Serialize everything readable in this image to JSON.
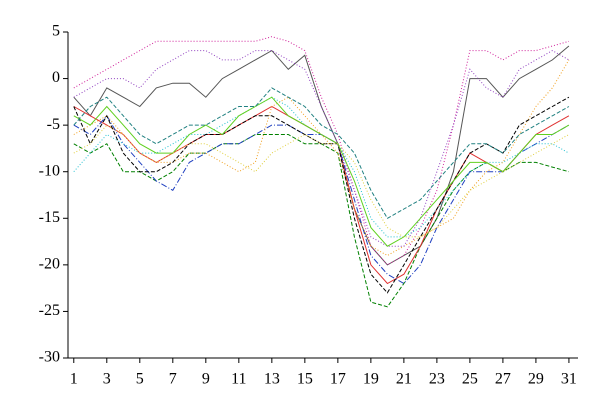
{
  "chart_data": {
    "type": "line",
    "x": [
      1,
      2,
      3,
      4,
      5,
      6,
      7,
      8,
      9,
      10,
      11,
      12,
      13,
      14,
      15,
      16,
      17,
      18,
      19,
      20,
      21,
      22,
      23,
      24,
      25,
      26,
      27,
      28,
      29,
      30,
      31
    ],
    "xlim": [
      0.65,
      31.55
    ],
    "xticks": [
      1,
      3,
      5,
      7,
      9,
      11,
      13,
      15,
      17,
      19,
      21,
      23,
      25,
      27,
      29,
      31
    ],
    "ylim": [
      -30,
      5
    ],
    "yticks": [
      -30,
      -25,
      -20,
      -15,
      -10,
      -5,
      0,
      5
    ],
    "series": [
      {
        "color": "#555555",
        "dash": "none",
        "values": [
          -2,
          -4,
          -1,
          -2,
          -3,
          -1,
          -0.5,
          -0.5,
          -2,
          0,
          1,
          2,
          3,
          1,
          2.5,
          -3,
          -7,
          -14,
          -18,
          -20,
          -19,
          -18,
          -15,
          -10,
          0,
          0,
          -2,
          0,
          1,
          2,
          3.5
        ]
      },
      {
        "color": "#008000",
        "dash": "4,2",
        "values": [
          -7,
          -8,
          -7,
          -10,
          -10,
          -11,
          -10,
          -8,
          -8,
          -7,
          -7,
          -6,
          -6,
          -6,
          -7,
          -7,
          -8,
          -17,
          -24,
          -24.5,
          -22,
          -18,
          -15,
          -12,
          -10,
          -9,
          -10,
          -9,
          -9,
          -9.5,
          -10
        ]
      },
      {
        "color": "#d0209a",
        "dash": "1,2",
        "values": [
          -1,
          0,
          1,
          2,
          3,
          4,
          4,
          4,
          4,
          4,
          4,
          4,
          4.5,
          4,
          3,
          -2,
          -6,
          -12,
          -18,
          -20,
          -19,
          -16,
          -12,
          -5,
          3,
          3,
          2,
          3,
          3,
          3.5,
          4
        ]
      },
      {
        "color": "#e03030",
        "dash": "none",
        "values": [
          -3,
          -4,
          -5,
          -6,
          -8,
          -9,
          -8,
          -7,
          -6,
          -6,
          -5,
          -4,
          -3,
          -4,
          -5,
          -6,
          -7,
          -14,
          -20,
          -22,
          -21,
          -18,
          -14,
          -11,
          -8,
          -9,
          -10,
          -8,
          -6,
          -5,
          -4
        ]
      },
      {
        "color": "#2040c0",
        "dash": "6,2,1,2",
        "values": [
          -5,
          -6,
          -4,
          -7,
          -9,
          -11,
          -12,
          -9,
          -8,
          -7,
          -7,
          -6,
          -5,
          -5,
          -6,
          -6,
          -7,
          -13,
          -19,
          -21,
          -22,
          -20,
          -16,
          -13,
          -10,
          -10,
          -10,
          -8,
          -7,
          -6,
          -5
        ]
      },
      {
        "color": "#20c0d0",
        "dash": "1,2",
        "values": [
          -10,
          -8,
          -6,
          -7,
          -8,
          -8,
          -7,
          -6,
          -6,
          -5,
          -4,
          -3,
          -2,
          -3,
          -5,
          -6,
          -7,
          -10,
          -15,
          -17,
          -17,
          -16,
          -14,
          -12,
          -10,
          -9,
          -9,
          -8,
          -7,
          -7,
          -8
        ]
      },
      {
        "color": "#f0a020",
        "dash": "1,2",
        "values": [
          -6,
          -5,
          -4,
          -6,
          -8,
          -9,
          -9,
          -8,
          -8,
          -9,
          -10,
          -9,
          -3,
          -2,
          -4,
          -6,
          -8,
          -14,
          -18,
          -19,
          -18,
          -17,
          -16,
          -15,
          -12,
          -10,
          -9,
          -6,
          -3,
          -1,
          2
        ]
      },
      {
        "color": "#000000",
        "dash": "4,2",
        "values": [
          -3,
          -7,
          -4,
          -8,
          -10,
          -10,
          -9,
          -7,
          -6,
          -6,
          -5,
          -4,
          -4,
          -5,
          -6,
          -7,
          -7,
          -15,
          -21,
          -23,
          -20,
          -17,
          -14,
          -11,
          -8,
          -7,
          -8,
          -5,
          -4,
          -3,
          -2
        ]
      },
      {
        "color": "#9040c0",
        "dash": "1,2",
        "values": [
          -2,
          -1,
          0,
          0,
          -1,
          1,
          2,
          3,
          3,
          2,
          2,
          3,
          3,
          2,
          1,
          -3,
          -7,
          -12,
          -17,
          -18,
          -18,
          -15,
          -10,
          -5,
          1,
          -1,
          -2,
          1,
          2,
          3,
          2
        ]
      },
      {
        "color": "#60d020",
        "dash": "none",
        "values": [
          -4,
          -5,
          -3,
          -5,
          -7,
          -8,
          -8,
          -6,
          -5,
          -6,
          -4,
          -3,
          -2,
          -4,
          -5,
          -6,
          -7,
          -11,
          -16,
          -18,
          -17,
          -15,
          -13,
          -11,
          -9,
          -9,
          -10,
          -8,
          -6,
          -6,
          -5
        ]
      },
      {
        "color": "#e0d040",
        "dash": "1,2",
        "values": [
          -8,
          -7,
          -5,
          -6,
          -8,
          -9,
          -8,
          -7,
          -7,
          -8,
          -9,
          -10,
          -8,
          -7,
          -6,
          -7,
          -7,
          -9,
          -13,
          -16,
          -17,
          -17,
          -16,
          -14,
          -12,
          -11,
          -10,
          -9,
          -8,
          -7,
          -6
        ]
      },
      {
        "color": "#208080",
        "dash": "4,2",
        "values": [
          -5,
          -3,
          -2,
          -4,
          -6,
          -7,
          -6,
          -5,
          -5,
          -4,
          -3,
          -3,
          -1,
          -2,
          -3,
          -5,
          -6,
          -8,
          -12,
          -15,
          -14,
          -13,
          -11,
          -9,
          -7,
          -7,
          -8,
          -6,
          -5,
          -4,
          -3
        ]
      }
    ]
  }
}
